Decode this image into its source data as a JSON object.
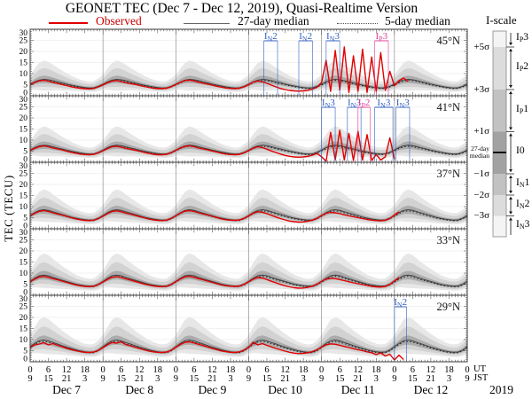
{
  "title": "GEONET TEC (Dec 7 - Dec 12, 2019), Quasi-Realtime Version",
  "legend": {
    "observed": "Observed",
    "median27": "27-day median",
    "median5": "5-day median"
  },
  "y_axis": {
    "label": "TEC (TECU)",
    "ticks": [
      "30",
      "25",
      "20",
      "15",
      "10",
      "5",
      "0"
    ],
    "max": 30
  },
  "x_axis": {
    "ut_ticks": [
      "0",
      "6",
      "12",
      "18"
    ],
    "jst_ticks": [
      "9",
      "15",
      "21",
      "3"
    ],
    "final_ut": "0",
    "final_jst": "9",
    "ut_unit": "UT",
    "jst_unit": "JST",
    "dates": [
      "Dec 7",
      "Dec 8",
      "Dec 9",
      "Dec 10",
      "Dec 11",
      "Dec 12"
    ],
    "year": "2019"
  },
  "colors": {
    "observed": "#e10000",
    "median27": "#3f3f3f",
    "median5": "#1a1a1a",
    "annotation_neg": "#2f5fc4",
    "annotation_pos": "#e23a97",
    "band_outer": "#e7e7e7",
    "band_mid": "#d2d2d2",
    "band_inner": "#ababab",
    "day_gridline": "#909090",
    "panel_border": "#3a3a3a"
  },
  "iscale": {
    "title": "I-scale",
    "sigma_labels": [
      "+5σ",
      "+3σ",
      "+1σ",
      "−1σ",
      "−2σ",
      "−3σ"
    ],
    "median_label": [
      "27-day",
      "median"
    ],
    "regions": [
      {
        "main": "I",
        "sub": "P",
        "num": "3"
      },
      {
        "main": "I",
        "sub": "P",
        "num": "2"
      },
      {
        "main": "I",
        "sub": "P",
        "num": "1"
      },
      {
        "main": "I",
        "sub": "",
        "num": "0"
      },
      {
        "main": "I",
        "sub": "N",
        "num": "1"
      },
      {
        "main": "I",
        "sub": "N",
        "num": "2"
      },
      {
        "main": "I",
        "sub": "N",
        "num": "3"
      }
    ],
    "shades": [
      "#f4f4f4",
      "#dcdcdc",
      "#c2c2c2",
      "#a2a2a2",
      "#c2c2c2",
      "#dcdcdc",
      "#f4f4f4"
    ]
  },
  "chart_data": {
    "type": "line",
    "title": "GEONET TEC (Dec 7 - Dec 12, 2019), Quasi-Realtime Version",
    "ylabel": "TEC (TECU)",
    "ylim": [
      0,
      30
    ],
    "x_days": [
      "Dec 7",
      "Dec 8",
      "Dec 9",
      "Dec 10",
      "Dec 11",
      "Dec 12"
    ],
    "x_hours_total": 144,
    "sample_step_hours": 1.5,
    "band_sigmas_up_down": [
      [
        5,
        3
      ],
      [
        3,
        2
      ],
      [
        1,
        1
      ]
    ],
    "median5_scale": 0.95,
    "median5_offset": -0.1,
    "panels": [
      {
        "lat": "45°N",
        "median_daily": [
          5.2,
          6.3,
          7.1,
          7.4,
          7.2,
          6.8,
          6.3,
          5.8,
          5.3,
          4.8,
          4.4,
          4.0,
          3.7,
          3.5,
          3.6,
          4.3
        ],
        "dev_daily": [
          0.85,
          1.2,
          1.55,
          1.7,
          1.62,
          1.45,
          1.28,
          1.12,
          0.98,
          0.85,
          0.74,
          0.66,
          0.6,
          0.57,
          0.6,
          0.72
        ],
        "observed": [
          5.0,
          6.0,
          6.8,
          7.0,
          6.6,
          6.0,
          5.6,
          5.1,
          4.6,
          4.1,
          3.7,
          3.4,
          3.2,
          3.1,
          3.3,
          4.0,
          4.9,
          5.9,
          6.6,
          6.9,
          6.4,
          5.9,
          5.5,
          5.2,
          4.7,
          4.2,
          3.8,
          3.4,
          3.2,
          3.2,
          3.4,
          4.1,
          5.1,
          6.1,
          6.9,
          7.1,
          6.7,
          6.1,
          5.7,
          5.3,
          4.8,
          4.3,
          3.9,
          3.5,
          3.3,
          3.2,
          3.4,
          4.1,
          5.0,
          6.2,
          6.7,
          6.3,
          5.6,
          4.8,
          4.0,
          3.3,
          2.8,
          2.4,
          2.2,
          2.1,
          2.2,
          2.5,
          3.0,
          3.8,
          6.0,
          16.0,
          2.0,
          20.5,
          2.5,
          22.0,
          1.5,
          18.0,
          2.0,
          21.0,
          1.5,
          17.5,
          2.0,
          19.5,
          2.5,
          11.0,
          4.5,
          6.8,
          8.0,
          6.5,
          null,
          null,
          null,
          null,
          null,
          null,
          null,
          null,
          null,
          null,
          null,
          null,
          null
        ],
        "annotations": [
          {
            "h1": 77,
            "h2": 81.5,
            "sub": "N",
            "num": "2",
            "kind": "neg"
          },
          {
            "h1": 88.5,
            "h2": 93,
            "sub": "N",
            "num": "2",
            "kind": "neg"
          },
          {
            "h1": 97.5,
            "h2": 102,
            "sub": "N",
            "num": "3",
            "kind": "neg"
          },
          {
            "h1": 113.5,
            "h2": 118,
            "sub": "P",
            "num": "3",
            "kind": "pos"
          }
        ]
      },
      {
        "lat": "41°N",
        "median_daily": [
          5.5,
          6.6,
          7.4,
          7.7,
          7.5,
          7.0,
          6.5,
          6.0,
          5.5,
          5.0,
          4.6,
          4.2,
          3.9,
          3.7,
          3.8,
          4.5
        ],
        "dev_daily": [
          0.85,
          1.2,
          1.55,
          1.7,
          1.62,
          1.45,
          1.28,
          1.12,
          0.98,
          0.85,
          0.74,
          0.66,
          0.6,
          0.57,
          0.6,
          0.72
        ],
        "observed": [
          5.3,
          6.3,
          7.1,
          7.4,
          7.0,
          6.4,
          6.0,
          5.6,
          5.0,
          4.5,
          4.1,
          3.7,
          3.5,
          3.4,
          3.6,
          4.3,
          5.2,
          6.2,
          7.0,
          7.2,
          6.8,
          6.3,
          5.9,
          5.5,
          5.0,
          4.5,
          4.0,
          3.6,
          3.4,
          3.4,
          3.6,
          4.3,
          5.4,
          6.4,
          7.2,
          7.4,
          7.0,
          6.4,
          6.0,
          5.6,
          5.1,
          4.6,
          4.1,
          3.7,
          3.5,
          3.4,
          3.6,
          4.3,
          5.3,
          6.4,
          7.0,
          6.6,
          5.9,
          5.1,
          4.4,
          3.7,
          3.1,
          2.7,
          2.4,
          2.3,
          2.4,
          2.7,
          3.2,
          4.0,
          2.5,
          0.5,
          13.5,
          1.0,
          14.5,
          1.0,
          13.0,
          0.8,
          14.0,
          1.0,
          12.5,
          0.8,
          3.5,
          1.0,
          2.5,
          11.0,
          1.5,
          null,
          null,
          null,
          null,
          null,
          null,
          null,
          null,
          null,
          null,
          null,
          null,
          null,
          null,
          null,
          null
        ],
        "annotations": [
          {
            "h1": 96,
            "h2": 100.5,
            "sub": "N",
            "num": "3",
            "kind": "neg"
          },
          {
            "h1": 104.5,
            "h2": 109,
            "sub": "N",
            "num": "3",
            "kind": "neg"
          },
          {
            "h1": 108,
            "h2": 112,
            "sub": "P",
            "num": "2",
            "kind": "pos"
          },
          {
            "h1": 113.5,
            "h2": 119.5,
            "sub": "N",
            "num": "3",
            "kind": "neg"
          },
          {
            "h1": 120.5,
            "h2": 125,
            "sub": "N",
            "num": "3",
            "kind": "neg"
          }
        ]
      },
      {
        "lat": "37°N",
        "median_daily": [
          6.0,
          7.3,
          8.3,
          8.6,
          8.3,
          7.7,
          7.1,
          6.5,
          5.9,
          5.3,
          4.8,
          4.4,
          4.1,
          3.9,
          4.0,
          4.8
        ],
        "dev_daily": [
          0.92,
          1.3,
          1.67,
          1.84,
          1.75,
          1.57,
          1.38,
          1.21,
          1.06,
          0.92,
          0.8,
          0.71,
          0.65,
          0.62,
          0.65,
          0.78
        ],
        "observed": [
          5.8,
          7.0,
          7.9,
          8.2,
          7.8,
          7.2,
          6.7,
          6.2,
          5.6,
          5.0,
          4.5,
          4.1,
          3.8,
          3.7,
          3.9,
          4.6,
          5.7,
          6.9,
          7.8,
          8.1,
          7.7,
          7.1,
          6.6,
          6.1,
          5.5,
          5.0,
          4.4,
          4.0,
          3.8,
          3.7,
          3.9,
          4.6,
          5.9,
          7.1,
          8.0,
          8.2,
          7.8,
          7.2,
          6.7,
          6.2,
          5.6,
          5.1,
          4.5,
          4.1,
          3.9,
          3.8,
          4.0,
          4.7,
          5.8,
          7.0,
          7.7,
          7.5,
          6.8,
          6.0,
          5.3,
          4.6,
          4.0,
          3.5,
          3.2,
          3.0,
          3.1,
          3.4,
          3.9,
          4.7,
          6.0,
          7.0,
          7.4,
          7.2,
          6.8,
          6.3,
          5.8,
          5.4,
          5.0,
          4.6,
          4.2,
          3.9,
          3.7,
          3.6,
          3.8,
          4.6,
          6.2,
          7.6,
          null,
          null,
          null,
          null,
          null,
          null,
          null,
          null,
          null,
          null,
          null,
          null,
          null,
          null,
          null
        ],
        "annotations": []
      },
      {
        "lat": "33°N",
        "median_daily": [
          6.3,
          7.7,
          8.8,
          9.1,
          8.8,
          8.1,
          7.4,
          6.8,
          6.2,
          5.6,
          5.0,
          4.6,
          4.3,
          4.1,
          4.2,
          5.0
        ],
        "dev_daily": [
          0.98,
          1.38,
          1.78,
          1.96,
          1.86,
          1.67,
          1.47,
          1.29,
          1.13,
          0.98,
          0.85,
          0.76,
          0.69,
          0.66,
          0.69,
          0.83
        ],
        "observed": [
          6.1,
          7.3,
          8.2,
          8.5,
          8.1,
          7.5,
          7.0,
          6.4,
          5.8,
          5.2,
          4.7,
          4.3,
          4.0,
          3.9,
          4.1,
          4.9,
          6.0,
          7.2,
          8.1,
          8.4,
          8.0,
          7.4,
          6.9,
          6.3,
          5.7,
          5.1,
          4.6,
          4.2,
          4.0,
          3.9,
          4.1,
          4.9,
          6.2,
          7.4,
          8.3,
          8.5,
          8.1,
          7.5,
          7.0,
          6.4,
          5.8,
          5.2,
          4.7,
          4.3,
          4.1,
          4.0,
          4.2,
          5.0,
          6.1,
          7.3,
          8.0,
          7.8,
          7.1,
          6.3,
          5.6,
          4.9,
          4.3,
          3.8,
          3.4,
          3.2,
          3.3,
          3.6,
          4.1,
          5.0,
          6.3,
          7.3,
          7.7,
          7.5,
          7.1,
          6.6,
          6.1,
          5.6,
          5.2,
          4.8,
          4.4,
          4.0,
          3.8,
          3.7,
          4.0,
          4.9,
          6.5,
          8.0,
          null,
          null,
          null,
          null,
          null,
          null,
          null,
          null,
          null,
          null,
          null,
          null,
          null,
          null,
          null
        ],
        "annotations": []
      },
      {
        "lat": "29°N",
        "median_daily": [
          6.8,
          8.3,
          9.5,
          9.8,
          9.4,
          8.7,
          8.0,
          7.3,
          6.6,
          6.0,
          5.4,
          4.9,
          4.5,
          4.3,
          4.4,
          5.3
        ],
        "dev_daily": [
          1.04,
          1.46,
          1.89,
          2.07,
          1.98,
          1.77,
          1.56,
          1.37,
          1.2,
          1.04,
          0.9,
          0.81,
          0.73,
          0.7,
          0.73,
          0.88
        ],
        "observed": [
          6.5,
          7.6,
          8.0,
          8.6,
          7.6,
          8.2,
          7.4,
          6.8,
          6.1,
          5.5,
          5.0,
          4.6,
          4.3,
          4.2,
          4.4,
          5.2,
          6.4,
          7.7,
          8.7,
          8.4,
          9.0,
          7.8,
          7.2,
          6.6,
          6.0,
          5.4,
          4.9,
          4.5,
          4.3,
          4.2,
          4.4,
          5.2,
          6.6,
          7.8,
          8.8,
          9.0,
          8.5,
          7.9,
          7.3,
          6.7,
          6.0,
          5.5,
          4.9,
          4.6,
          4.3,
          4.2,
          4.5,
          5.3,
          6.5,
          8.8,
          7.6,
          8.2,
          7.4,
          6.7,
          6.0,
          5.4,
          4.8,
          4.3,
          3.9,
          3.7,
          3.8,
          4.1,
          4.6,
          5.4,
          6.7,
          7.7,
          8.1,
          7.9,
          7.4,
          6.9,
          6.4,
          5.9,
          5.4,
          5.0,
          4.5,
          4.1,
          3.2,
          4.0,
          2.6,
          3.4,
          0.8,
          3.0,
          1.0,
          null,
          null,
          null,
          null,
          null,
          null,
          null,
          null,
          null,
          null,
          null,
          null,
          null,
          null
        ],
        "annotations": [
          {
            "h1": 120,
            "h2": 124,
            "sub": "N",
            "num": "2",
            "kind": "neg"
          }
        ]
      }
    ]
  }
}
